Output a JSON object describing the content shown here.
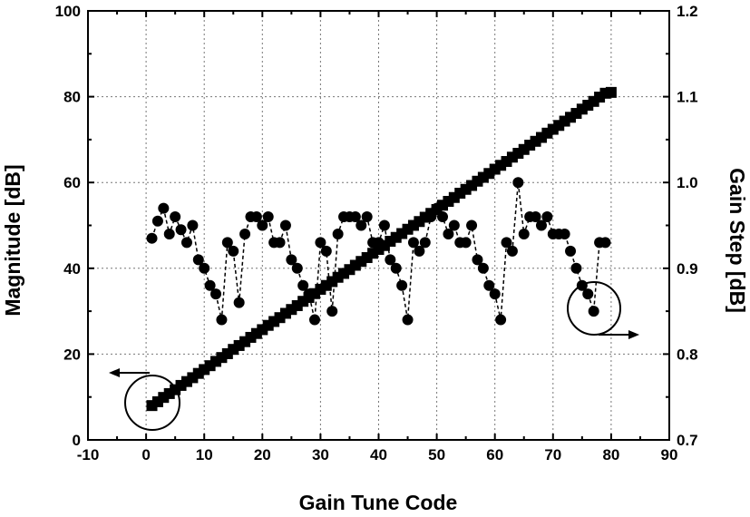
{
  "chart_data": {
    "type": "scatter",
    "xlabel": "Gain Tune Code",
    "ylabel_left": "Magnitude [dB]",
    "ylabel_right": "Gain Step [dB]",
    "xlim": [
      -10,
      90
    ],
    "ylim_left": [
      0,
      100
    ],
    "ylim_right": [
      0.7,
      1.2
    ],
    "xticks": [
      "-10",
      "0",
      "10",
      "20",
      "30",
      "40",
      "50",
      "60",
      "70",
      "80",
      "90"
    ],
    "yticks_left": [
      "0",
      "20",
      "40",
      "60",
      "80",
      "100"
    ],
    "yticks_right": [
      "0.7",
      "0.8",
      "0.9",
      "1.0",
      "1.1",
      "1.2"
    ],
    "grid": true,
    "series": [
      {
        "axis": "left",
        "marker": "square",
        "x": [
          1,
          2,
          3,
          4,
          5,
          6,
          7,
          8,
          9,
          10,
          11,
          12,
          13,
          14,
          15,
          16,
          17,
          18,
          19,
          20,
          21,
          22,
          23,
          24,
          25,
          26,
          27,
          28,
          29,
          30,
          31,
          32,
          33,
          34,
          35,
          36,
          37,
          38,
          39,
          40,
          41,
          42,
          43,
          44,
          45,
          46,
          47,
          48,
          49,
          50,
          51,
          52,
          53,
          54,
          55,
          56,
          57,
          58,
          59,
          60,
          61,
          62,
          63,
          64,
          65,
          66,
          67,
          68,
          69,
          70,
          71,
          72,
          73,
          74,
          75,
          76,
          77,
          78,
          79,
          80
        ],
        "values": [
          8.0,
          8.9,
          9.9,
          10.8,
          11.7,
          12.7,
          13.6,
          14.5,
          15.5,
          16.4,
          17.3,
          18.3,
          19.2,
          20.1,
          21.1,
          22.0,
          22.9,
          23.9,
          24.8,
          25.7,
          26.7,
          27.6,
          28.5,
          29.5,
          30.4,
          31.3,
          32.3,
          33.2,
          34.1,
          35.1,
          36.0,
          36.9,
          37.9,
          38.8,
          39.7,
          40.7,
          41.6,
          42.5,
          43.5,
          44.4,
          45.3,
          46.3,
          47.2,
          48.1,
          49.1,
          50.0,
          50.9,
          51.9,
          52.8,
          53.7,
          54.7,
          55.6,
          56.5,
          57.5,
          58.4,
          59.3,
          60.3,
          61.2,
          62.1,
          63.1,
          64.0,
          64.9,
          65.9,
          66.8,
          67.7,
          68.7,
          69.6,
          70.5,
          71.5,
          72.4,
          73.3,
          74.3,
          75.2,
          76.1,
          77.1,
          78.0,
          78.9,
          79.9,
          80.8,
          81.0
        ]
      },
      {
        "axis": "right",
        "marker": "circle",
        "line": "dash",
        "x": [
          1,
          2,
          3,
          4,
          5,
          6,
          7,
          8,
          9,
          10,
          11,
          12,
          13,
          14,
          15,
          16,
          17,
          18,
          19,
          20,
          21,
          22,
          23,
          24,
          25,
          26,
          27,
          28,
          29,
          30,
          31,
          32,
          33,
          34,
          35,
          36,
          37,
          38,
          39,
          40,
          41,
          42,
          43,
          44,
          45,
          46,
          47,
          48,
          49,
          50,
          51,
          52,
          53,
          54,
          55,
          56,
          57,
          58,
          59,
          60,
          61,
          62,
          63,
          64,
          65,
          66,
          67,
          68,
          69,
          70,
          71,
          72,
          73,
          74,
          75,
          76,
          77,
          78,
          79
        ],
        "values": [
          0.935,
          0.955,
          0.97,
          0.94,
          0.96,
          0.945,
          0.93,
          0.95,
          0.91,
          0.9,
          0.88,
          0.87,
          0.84,
          0.93,
          0.92,
          0.86,
          0.94,
          0.96,
          0.96,
          0.95,
          0.96,
          0.93,
          0.93,
          0.95,
          0.91,
          0.9,
          0.88,
          0.87,
          0.84,
          0.93,
          0.92,
          0.85,
          0.94,
          0.96,
          0.96,
          0.96,
          0.95,
          0.96,
          0.93,
          0.93,
          0.95,
          0.91,
          0.9,
          0.88,
          0.84,
          0.93,
          0.92,
          0.93,
          0.96,
          0.97,
          0.96,
          0.94,
          0.95,
          0.93,
          0.93,
          0.95,
          0.91,
          0.9,
          0.88,
          0.87,
          0.84,
          0.93,
          0.92,
          1.0,
          0.94,
          0.96,
          0.96,
          0.95,
          0.96,
          0.94,
          0.94,
          0.94,
          0.92,
          0.9,
          0.88,
          0.87,
          0.85,
          0.93,
          0.93
        ]
      }
    ]
  }
}
